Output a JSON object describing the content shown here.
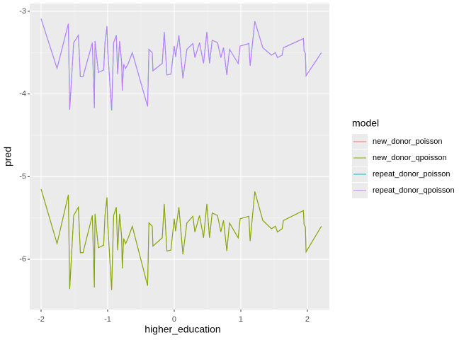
{
  "chart_data": {
    "type": "line",
    "x_label": "higher_education",
    "y_label": "pred",
    "legend_title": "model",
    "x": [
      -2.0,
      -1.76,
      -1.59,
      -1.57,
      -1.51,
      -1.44,
      -1.41,
      -1.37,
      -1.23,
      -1.2,
      -1.19,
      -1.14,
      -1.06,
      -1.04,
      -1.01,
      -1.0,
      -0.94,
      -0.91,
      -0.87,
      -0.85,
      -0.82,
      -0.79,
      -0.78,
      -0.76,
      -0.73,
      -0.69,
      -0.63,
      -0.4,
      -0.38,
      -0.33,
      -0.32,
      -0.18,
      -0.15,
      -0.11,
      -0.05,
      0,
      0.02,
      0.07,
      0.13,
      0.19,
      0.28,
      0.31,
      0.38,
      0.44,
      0.49,
      0.53,
      0.57,
      0.65,
      0.7,
      0.74,
      0.79,
      0.83,
      0.96,
      0.99,
      1.12,
      1.14,
      1.21,
      1.33,
      1.46,
      1.52,
      1.55,
      1.62,
      1.64,
      1.94,
      1.95,
      1.97,
      1.98,
      2.21
    ],
    "series": [
      {
        "name": "new_donor_poisson",
        "color": "#F8766D",
        "values": [
          -5.15,
          -5.81,
          -5.22,
          -6.36,
          -5.47,
          -5.37,
          -5.92,
          -5.92,
          -5.47,
          -6.34,
          -5.45,
          -5.86,
          -5.83,
          -5.47,
          -5.25,
          -5.56,
          -6.37,
          -5.47,
          -5.37,
          -5.89,
          -5.45,
          -5.73,
          -6.11,
          -5.75,
          -5.81,
          -5.74,
          -5.6,
          -6.32,
          -5.56,
          -5.6,
          -5.84,
          -5.74,
          -5.33,
          -5.9,
          -5.89,
          -5.51,
          -5.66,
          -5.37,
          -5.94,
          -5.56,
          -5.48,
          -5.67,
          -5.47,
          -5.74,
          -5.33,
          -5.74,
          -5.44,
          -5.47,
          -5.67,
          -5.53,
          -5.9,
          -5.56,
          -5.74,
          -5.51,
          -5.48,
          -5.78,
          -5.18,
          -5.53,
          -5.63,
          -5.6,
          -5.67,
          -5.63,
          -5.53,
          -5.41,
          -5.58,
          -5.61,
          -5.91,
          -5.6
        ]
      },
      {
        "name": "new_donor_qpoisson",
        "color": "#7CAE00",
        "values": [
          -5.15,
          -5.81,
          -5.22,
          -6.36,
          -5.47,
          -5.37,
          -5.92,
          -5.92,
          -5.47,
          -6.34,
          -5.45,
          -5.86,
          -5.83,
          -5.47,
          -5.25,
          -5.56,
          -6.37,
          -5.47,
          -5.37,
          -5.89,
          -5.45,
          -5.73,
          -6.11,
          -5.75,
          -5.81,
          -5.74,
          -5.6,
          -6.32,
          -5.56,
          -5.6,
          -5.84,
          -5.74,
          -5.33,
          -5.9,
          -5.89,
          -5.51,
          -5.66,
          -5.37,
          -5.94,
          -5.56,
          -5.48,
          -5.67,
          -5.47,
          -5.74,
          -5.33,
          -5.74,
          -5.44,
          -5.47,
          -5.67,
          -5.53,
          -5.9,
          -5.56,
          -5.74,
          -5.51,
          -5.48,
          -5.78,
          -5.18,
          -5.53,
          -5.63,
          -5.6,
          -5.67,
          -5.63,
          -5.53,
          -5.41,
          -5.58,
          -5.61,
          -5.91,
          -5.6
        ]
      },
      {
        "name": "repeat_donor_poisson",
        "color": "#00BFC4",
        "values": [
          -3.09,
          -3.69,
          -3.15,
          -4.19,
          -3.38,
          -3.29,
          -3.79,
          -3.79,
          -3.38,
          -4.17,
          -3.36,
          -3.74,
          -3.71,
          -3.38,
          -3.18,
          -3.46,
          -4.2,
          -3.38,
          -3.29,
          -3.76,
          -3.36,
          -3.62,
          -3.96,
          -3.64,
          -3.69,
          -3.63,
          -3.5,
          -4.15,
          -3.46,
          -3.5,
          -3.72,
          -3.63,
          -3.25,
          -3.77,
          -3.76,
          -3.42,
          -3.55,
          -3.29,
          -3.81,
          -3.46,
          -3.39,
          -3.56,
          -3.38,
          -3.63,
          -3.25,
          -3.63,
          -3.35,
          -3.38,
          -3.56,
          -3.44,
          -3.77,
          -3.46,
          -3.63,
          -3.42,
          -3.39,
          -3.66,
          -3.12,
          -3.44,
          -3.53,
          -3.5,
          -3.56,
          -3.53,
          -3.44,
          -3.33,
          -3.48,
          -3.51,
          -3.78,
          -3.5
        ]
      },
      {
        "name": "repeat_donor_qpoisson",
        "color": "#C77CFF",
        "values": [
          -3.09,
          -3.69,
          -3.15,
          -4.19,
          -3.38,
          -3.29,
          -3.79,
          -3.79,
          -3.38,
          -4.17,
          -3.36,
          -3.74,
          -3.71,
          -3.38,
          -3.18,
          -3.46,
          -4.2,
          -3.38,
          -3.29,
          -3.76,
          -3.36,
          -3.62,
          -3.96,
          -3.64,
          -3.69,
          -3.63,
          -3.5,
          -4.15,
          -3.46,
          -3.5,
          -3.72,
          -3.63,
          -3.25,
          -3.77,
          -3.76,
          -3.42,
          -3.55,
          -3.29,
          -3.81,
          -3.46,
          -3.39,
          -3.56,
          -3.38,
          -3.63,
          -3.25,
          -3.63,
          -3.35,
          -3.38,
          -3.56,
          -3.44,
          -3.77,
          -3.46,
          -3.63,
          -3.42,
          -3.39,
          -3.66,
          -3.12,
          -3.44,
          -3.53,
          -3.5,
          -3.56,
          -3.53,
          -3.44,
          -3.33,
          -3.48,
          -3.51,
          -3.78,
          -3.5
        ]
      }
    ],
    "xlim": [
      -2.17,
      2.33
    ],
    "ylim": [
      -6.608,
      -2.906
    ],
    "xticks": [
      -2,
      -1,
      0,
      1,
      2
    ],
    "yticks": [
      -6,
      -5,
      -4,
      -3
    ],
    "grid": true
  }
}
